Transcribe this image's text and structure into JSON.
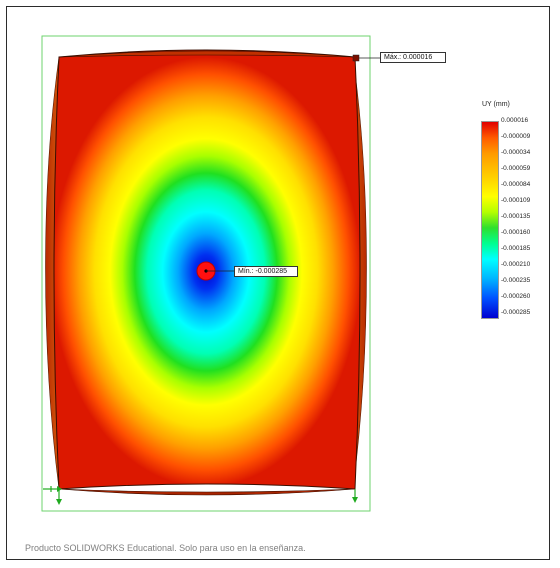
{
  "plot": {
    "max_label": "Máx.: 0.000016",
    "min_label": "Mín.: -0.000285"
  },
  "legend": {
    "title": "UY (mm)",
    "colors": {
      "max": "#e00000",
      "min": "#0000d0"
    },
    "labels": [
      "0.000016",
      "-0.000009",
      "-0.000034",
      "-0.000059",
      "-0.000084",
      "-0.000109",
      "-0.000135",
      "-0.000160",
      "-0.000185",
      "-0.000210",
      "-0.000235",
      "-0.000260",
      "-0.000285"
    ]
  },
  "footer": {
    "text": "Producto SOLIDWORKS Educational. Solo para uso en la enseñanza."
  },
  "icons": [
    "fixture-arrow-icon",
    "min-marker-icon",
    "max-marker-icon"
  ]
}
